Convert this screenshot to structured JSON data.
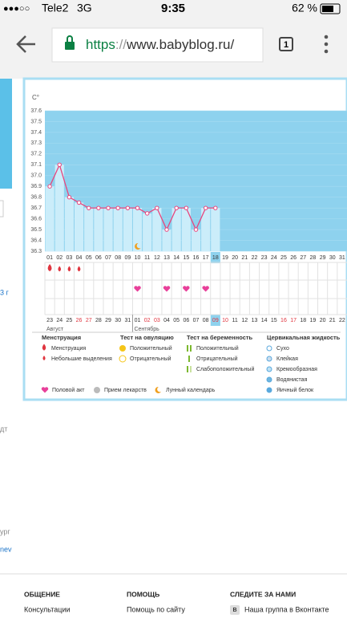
{
  "status_bar": {
    "carrier": "Tele2",
    "network": "3G",
    "time": "9:35",
    "battery": "62 %"
  },
  "browser": {
    "scheme": "https",
    "separator": "://",
    "host": "www.babyblog.ru/",
    "tabs": "1"
  },
  "side_fragments": [
    "3 г",
    "дт",
    "ург",
    "nev"
  ],
  "chart_data": {
    "type": "line",
    "y_unit": "C°",
    "categories": [
      "01",
      "02",
      "03",
      "04",
      "05",
      "06",
      "07",
      "08",
      "09",
      "10",
      "11",
      "12",
      "13",
      "14",
      "15",
      "16",
      "17",
      "18",
      "19",
      "20",
      "21",
      "22",
      "23",
      "24",
      "25",
      "26",
      "27",
      "28",
      "29",
      "30",
      "31"
    ],
    "values": [
      36.9,
      37.1,
      36.8,
      36.75,
      36.7,
      36.7,
      36.7,
      36.7,
      36.7,
      36.7,
      36.65,
      36.7,
      36.5,
      36.7,
      36.7,
      36.5,
      36.7,
      36.7,
      null,
      null,
      null,
      null,
      null,
      null,
      null,
      null,
      null,
      null,
      null,
      null,
      null
    ],
    "color": "#e8457d",
    "fill_color": "#cbedfa",
    "background_color": "#8ed2ee",
    "ylim": [
      36.3,
      37.6
    ],
    "yticks": [
      36.3,
      36.4,
      36.5,
      36.6,
      36.7,
      36.8,
      36.9,
      {
        "value": 37,
        "label": "37.0"
      },
      37.1,
      37.2,
      37.3,
      37.4,
      37.5,
      37.6
    ],
    "highlight_index": 17,
    "events": {
      "menstruation": [
        0
      ],
      "spotting": [
        1,
        2,
        3
      ],
      "intercourse": [
        9,
        12,
        14,
        16
      ],
      "lunar": [
        9
      ]
    },
    "dates": [
      "23",
      "24",
      "25",
      "26",
      "27",
      "28",
      "29",
      "30",
      "31",
      "01",
      "02",
      "03",
      "04",
      "05",
      "06",
      "07",
      "08",
      "09",
      "10",
      "11",
      "12",
      "13",
      "14",
      "15",
      "16",
      "17",
      "18",
      "19",
      "20",
      "21",
      "22"
    ],
    "red_dates": [
      3,
      4,
      10,
      11,
      17,
      18,
      24,
      25
    ],
    "months": [
      {
        "label": "Август",
        "start": 0
      },
      {
        "label": "Сентябрь",
        "start": 9
      }
    ]
  },
  "legend": {
    "groups": [
      {
        "title": "Менструация",
        "items": [
          "Менструация",
          "Небольшие выделения"
        ]
      },
      {
        "title": "Тест на овуляцию",
        "items": [
          "Положительный",
          "Отрицательный"
        ]
      },
      {
        "title": "Тест на беременность",
        "items": [
          "Положительный",
          "Отрицательный",
          "Слабоположительный"
        ]
      },
      {
        "title": "Цервикальная жидкость",
        "items": [
          "Сухо",
          "Клейкая",
          "Кремообразная",
          "Водянистая",
          "Яичный белок"
        ]
      }
    ],
    "extra": [
      "Половой акт",
      "Прием лекарств",
      "Лунный календарь"
    ]
  },
  "footer": {
    "columns": [
      {
        "title": "ОБЩЕНИЕ",
        "links": [
          "Консультации"
        ]
      },
      {
        "title": "ПОМОЩЬ",
        "links": [
          "Помощь по сайту"
        ]
      },
      {
        "title": "СЛЕДИТЕ ЗА НАМИ",
        "links": [
          "Наша группа в Вконтакте"
        ]
      }
    ],
    "vk_icon": "В"
  }
}
